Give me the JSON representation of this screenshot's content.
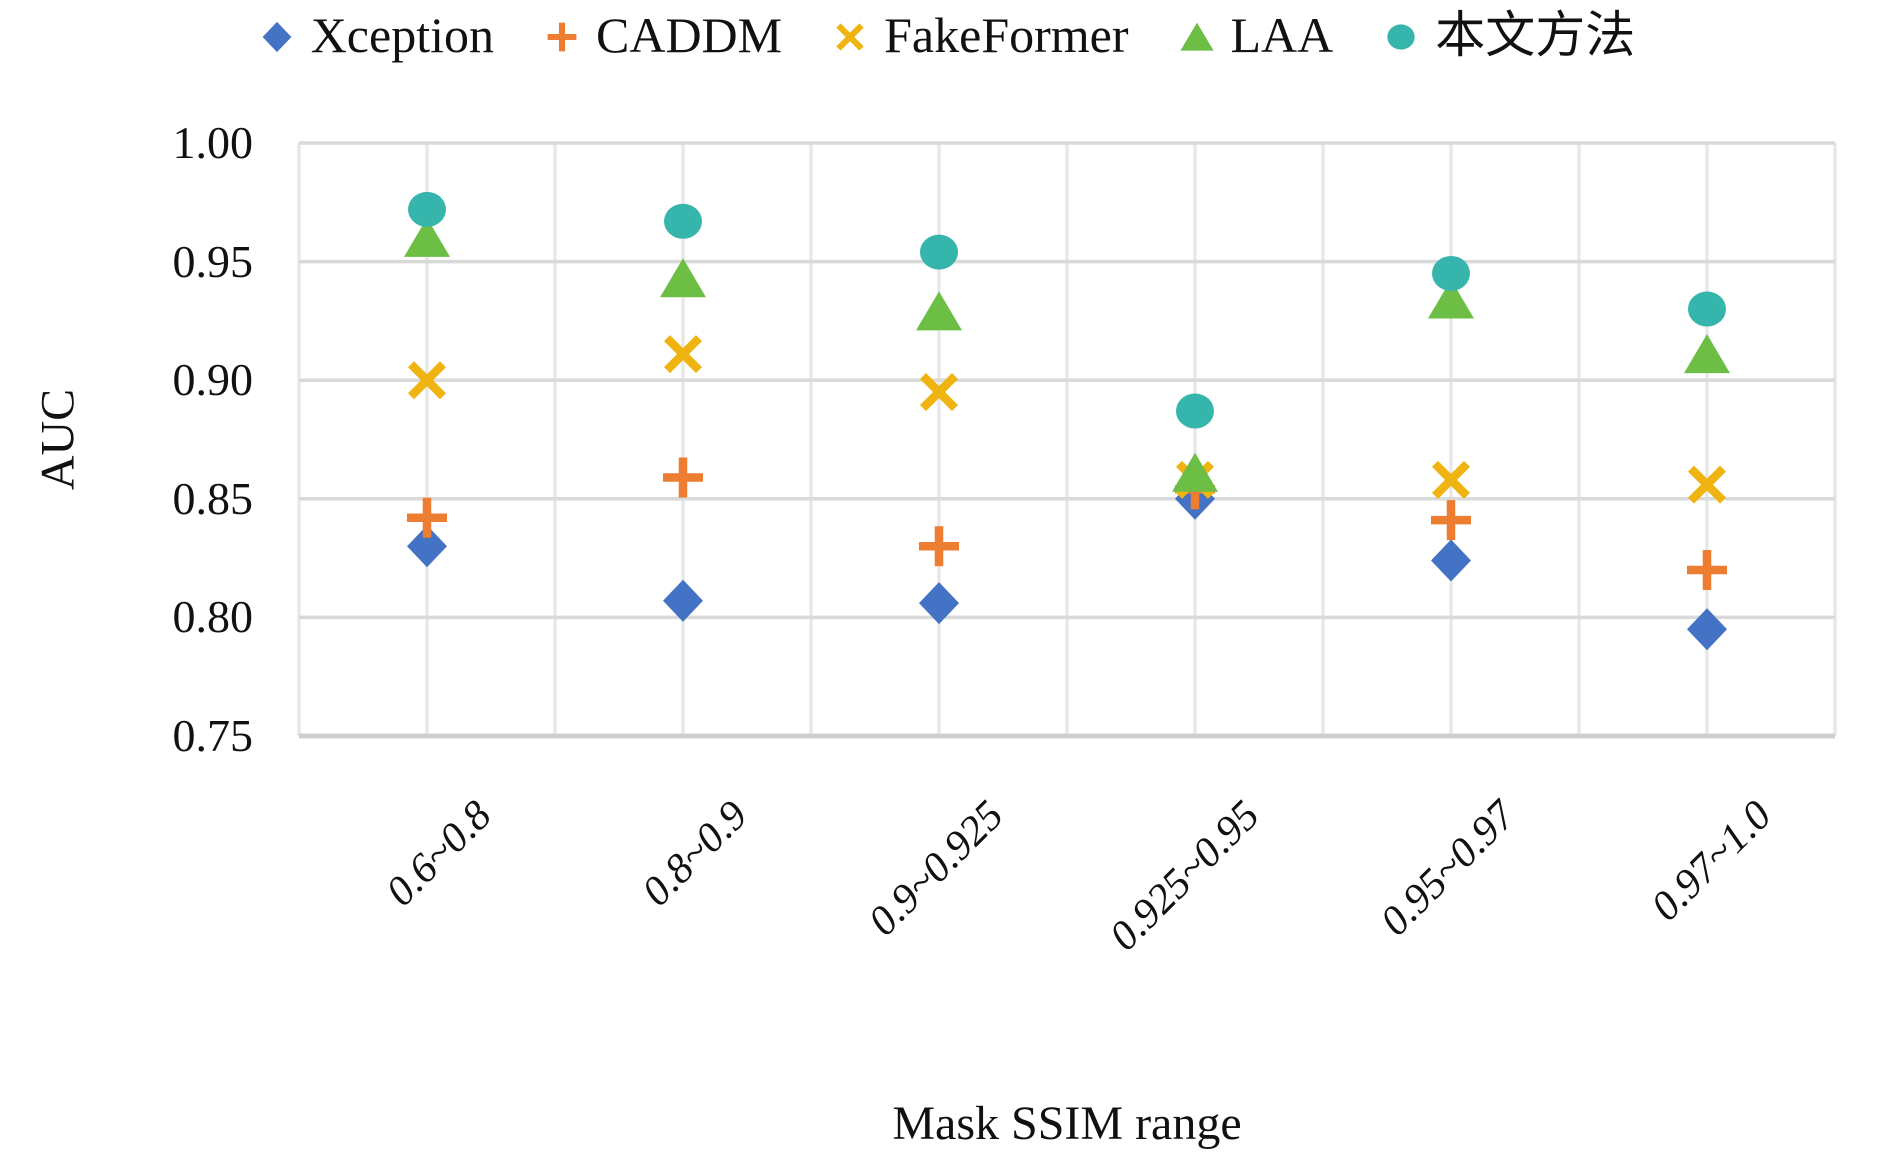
{
  "chart_data": {
    "type": "scatter",
    "title": "",
    "xlabel": "Mask SSIM range",
    "ylabel": "AUC",
    "categories": [
      "0.6~0.8",
      "0.8~0.9",
      "0.9~0.925",
      "0.925~0.95",
      "0.95~0.97",
      "0.97~1.0"
    ],
    "ylim": [
      0.75,
      1.0
    ],
    "yticks": [
      1.0,
      0.95,
      0.9,
      0.85,
      0.8,
      0.75
    ],
    "grid": true,
    "legend_position": "top",
    "series": [
      {
        "name": "Xception",
        "marker": "diamond",
        "color": "#4472C4",
        "values": [
          0.83,
          0.807,
          0.806,
          0.85,
          0.824,
          0.795
        ]
      },
      {
        "name": "CADDM",
        "marker": "plus",
        "color": "#ED7D31",
        "values": [
          0.842,
          0.859,
          0.83,
          0.854,
          0.841,
          0.82
        ]
      },
      {
        "name": "FakeFormer",
        "marker": "x",
        "color": "#F0B411",
        "values": [
          0.9,
          0.911,
          0.895,
          0.858,
          0.858,
          0.856
        ]
      },
      {
        "name": "LAA",
        "marker": "triangle",
        "color": "#6CBE45",
        "values": [
          0.96,
          0.943,
          0.929,
          0.861,
          0.934,
          0.911
        ]
      },
      {
        "name": "本文方法",
        "marker": "circle",
        "color": "#36B5AC",
        "values": [
          0.972,
          0.967,
          0.954,
          0.887,
          0.945,
          0.93
        ]
      }
    ],
    "grid_colors": {
      "horizontal": "#D9D9D9",
      "vertical": "#E8E8E8",
      "baseline": "#D0D0D0"
    }
  }
}
